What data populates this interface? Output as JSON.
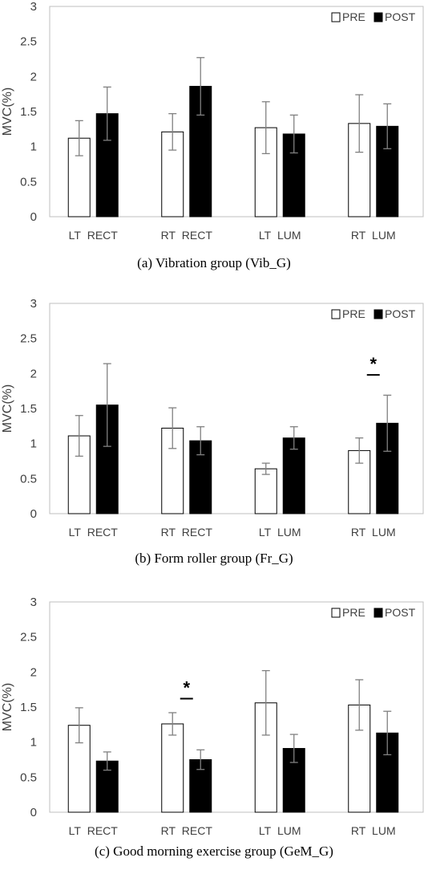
{
  "chart_data": [
    {
      "type": "bar",
      "caption": "(a) Vibration group (Vib_G)",
      "ylabel": "MVC(%)",
      "ylim": [
        0,
        3
      ],
      "yticks": [
        "0",
        "0.5",
        "1",
        "1.5",
        "2",
        "2.5",
        "3"
      ],
      "categories": [
        "LT_RECT",
        "RT_RECT",
        "LT_LUM",
        "RT_LUM"
      ],
      "legend_position": "top-right",
      "grid": false,
      "series": [
        {
          "name": "PRE",
          "color": "#ffffff",
          "values": [
            1.12,
            1.21,
            1.27,
            1.33
          ],
          "errors": [
            0.25,
            0.26,
            0.37,
            0.41
          ]
        },
        {
          "name": "POST",
          "color": "#000000",
          "values": [
            1.47,
            1.86,
            1.18,
            1.29
          ],
          "errors": [
            0.38,
            0.41,
            0.27,
            0.32
          ]
        }
      ],
      "significance": []
    },
    {
      "type": "bar",
      "caption": "(b) Form roller group (Fr_G)",
      "ylabel": "MVC(%)",
      "ylim": [
        0,
        3
      ],
      "yticks": [
        "0",
        "0.5",
        "1",
        "1.5",
        "2",
        "2.5",
        "3"
      ],
      "categories": [
        "LT_RECT",
        "RT_RECT",
        "LT_LUM",
        "RT_LUM"
      ],
      "legend_position": "top-right",
      "grid": false,
      "series": [
        {
          "name": "PRE",
          "color": "#ffffff",
          "values": [
            1.11,
            1.22,
            0.64,
            0.9
          ],
          "errors": [
            0.29,
            0.29,
            0.08,
            0.18
          ]
        },
        {
          "name": "POST",
          "color": "#000000",
          "values": [
            1.55,
            1.04,
            1.08,
            1.29
          ],
          "errors": [
            0.59,
            0.2,
            0.16,
            0.4
          ]
        }
      ],
      "significance": [
        {
          "category_index": 3,
          "mark": "*",
          "level": 1.98
        }
      ]
    },
    {
      "type": "bar",
      "caption": "(c) Good morning exercise group (GeM_G)",
      "ylabel": "MVC(%)",
      "ylim": [
        0,
        3
      ],
      "yticks": [
        "0",
        "0.5",
        "1",
        "1.5",
        "2",
        "2.5",
        "3"
      ],
      "categories": [
        "LT_RECT",
        "RT_RECT",
        "LT_LUM",
        "RT_LUM"
      ],
      "legend_position": "top-right",
      "grid": false,
      "series": [
        {
          "name": "PRE",
          "color": "#ffffff",
          "values": [
            1.24,
            1.26,
            1.56,
            1.53
          ],
          "errors": [
            0.25,
            0.16,
            0.46,
            0.36
          ]
        },
        {
          "name": "POST",
          "color": "#000000",
          "values": [
            0.73,
            0.75,
            0.91,
            1.13
          ],
          "errors": [
            0.13,
            0.14,
            0.2,
            0.31
          ]
        }
      ],
      "significance": [
        {
          "category_index": 1,
          "mark": "*",
          "level": 1.62
        }
      ]
    }
  ]
}
